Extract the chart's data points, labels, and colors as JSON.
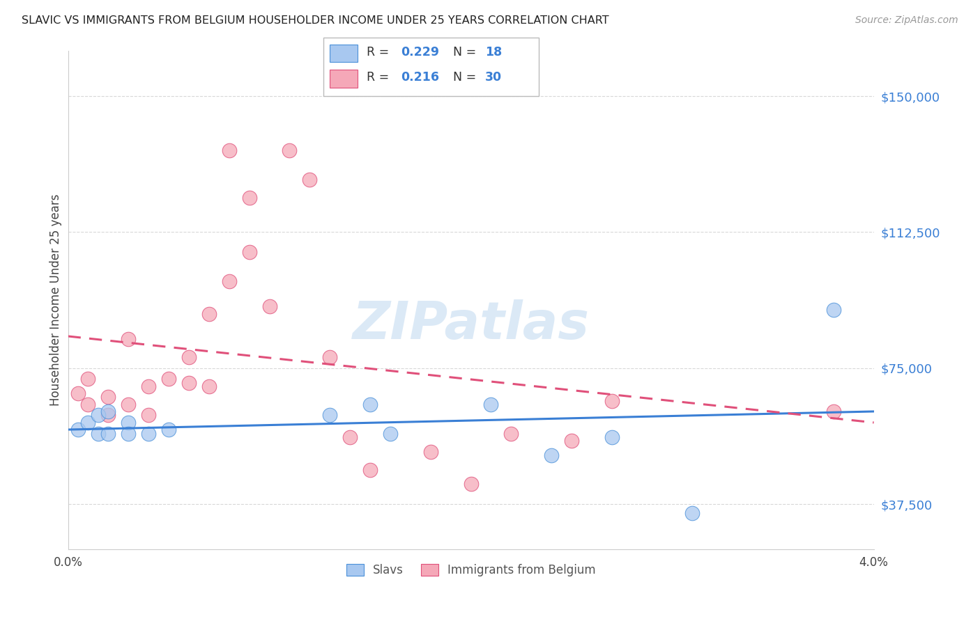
{
  "title": "SLAVIC VS IMMIGRANTS FROM BELGIUM HOUSEHOLDER INCOME UNDER 25 YEARS CORRELATION CHART",
  "source": "Source: ZipAtlas.com",
  "ylabel": "Householder Income Under 25 years",
  "xlim": [
    0.0,
    0.04
  ],
  "ylim": [
    25000,
    162500
  ],
  "yticks": [
    37500,
    75000,
    112500,
    150000
  ],
  "ytick_labels": [
    "$37,500",
    "$75,000",
    "$112,500",
    "$150,000"
  ],
  "xticks": [
    0.0,
    0.04
  ],
  "xtick_labels": [
    "0.0%",
    "4.0%"
  ],
  "background_color": "#ffffff",
  "grid_color": "#d8d8d8",
  "slavs_fill": "#a8c8f0",
  "slavs_edge": "#4a90d9",
  "belgium_fill": "#f5a8b8",
  "belgium_edge": "#e0507a",
  "slavs_line_color": "#3a7fd5",
  "belgium_line_color": "#e0507a",
  "legend_R1": "0.229",
  "legend_N1": "18",
  "legend_R2": "0.216",
  "legend_N2": "30",
  "watermark": "ZIPatlas",
  "slavs_x": [
    0.0005,
    0.001,
    0.0015,
    0.0015,
    0.002,
    0.002,
    0.003,
    0.003,
    0.004,
    0.005,
    0.013,
    0.015,
    0.016,
    0.021,
    0.024,
    0.027,
    0.031,
    0.038
  ],
  "slavs_y": [
    58000,
    60000,
    57000,
    62000,
    57000,
    63000,
    60000,
    57000,
    57000,
    58000,
    62000,
    65000,
    57000,
    65000,
    51000,
    56000,
    35000,
    91000
  ],
  "belgium_x": [
    0.0005,
    0.001,
    0.001,
    0.002,
    0.002,
    0.003,
    0.003,
    0.004,
    0.004,
    0.005,
    0.006,
    0.006,
    0.007,
    0.007,
    0.008,
    0.008,
    0.009,
    0.009,
    0.01,
    0.011,
    0.012,
    0.013,
    0.014,
    0.015,
    0.018,
    0.02,
    0.022,
    0.025,
    0.027,
    0.038
  ],
  "belgium_y": [
    68000,
    65000,
    72000,
    62000,
    67000,
    65000,
    83000,
    70000,
    62000,
    72000,
    78000,
    71000,
    90000,
    70000,
    99000,
    135000,
    122000,
    107000,
    92000,
    135000,
    127000,
    78000,
    56000,
    47000,
    52000,
    43000,
    57000,
    55000,
    66000,
    63000
  ]
}
